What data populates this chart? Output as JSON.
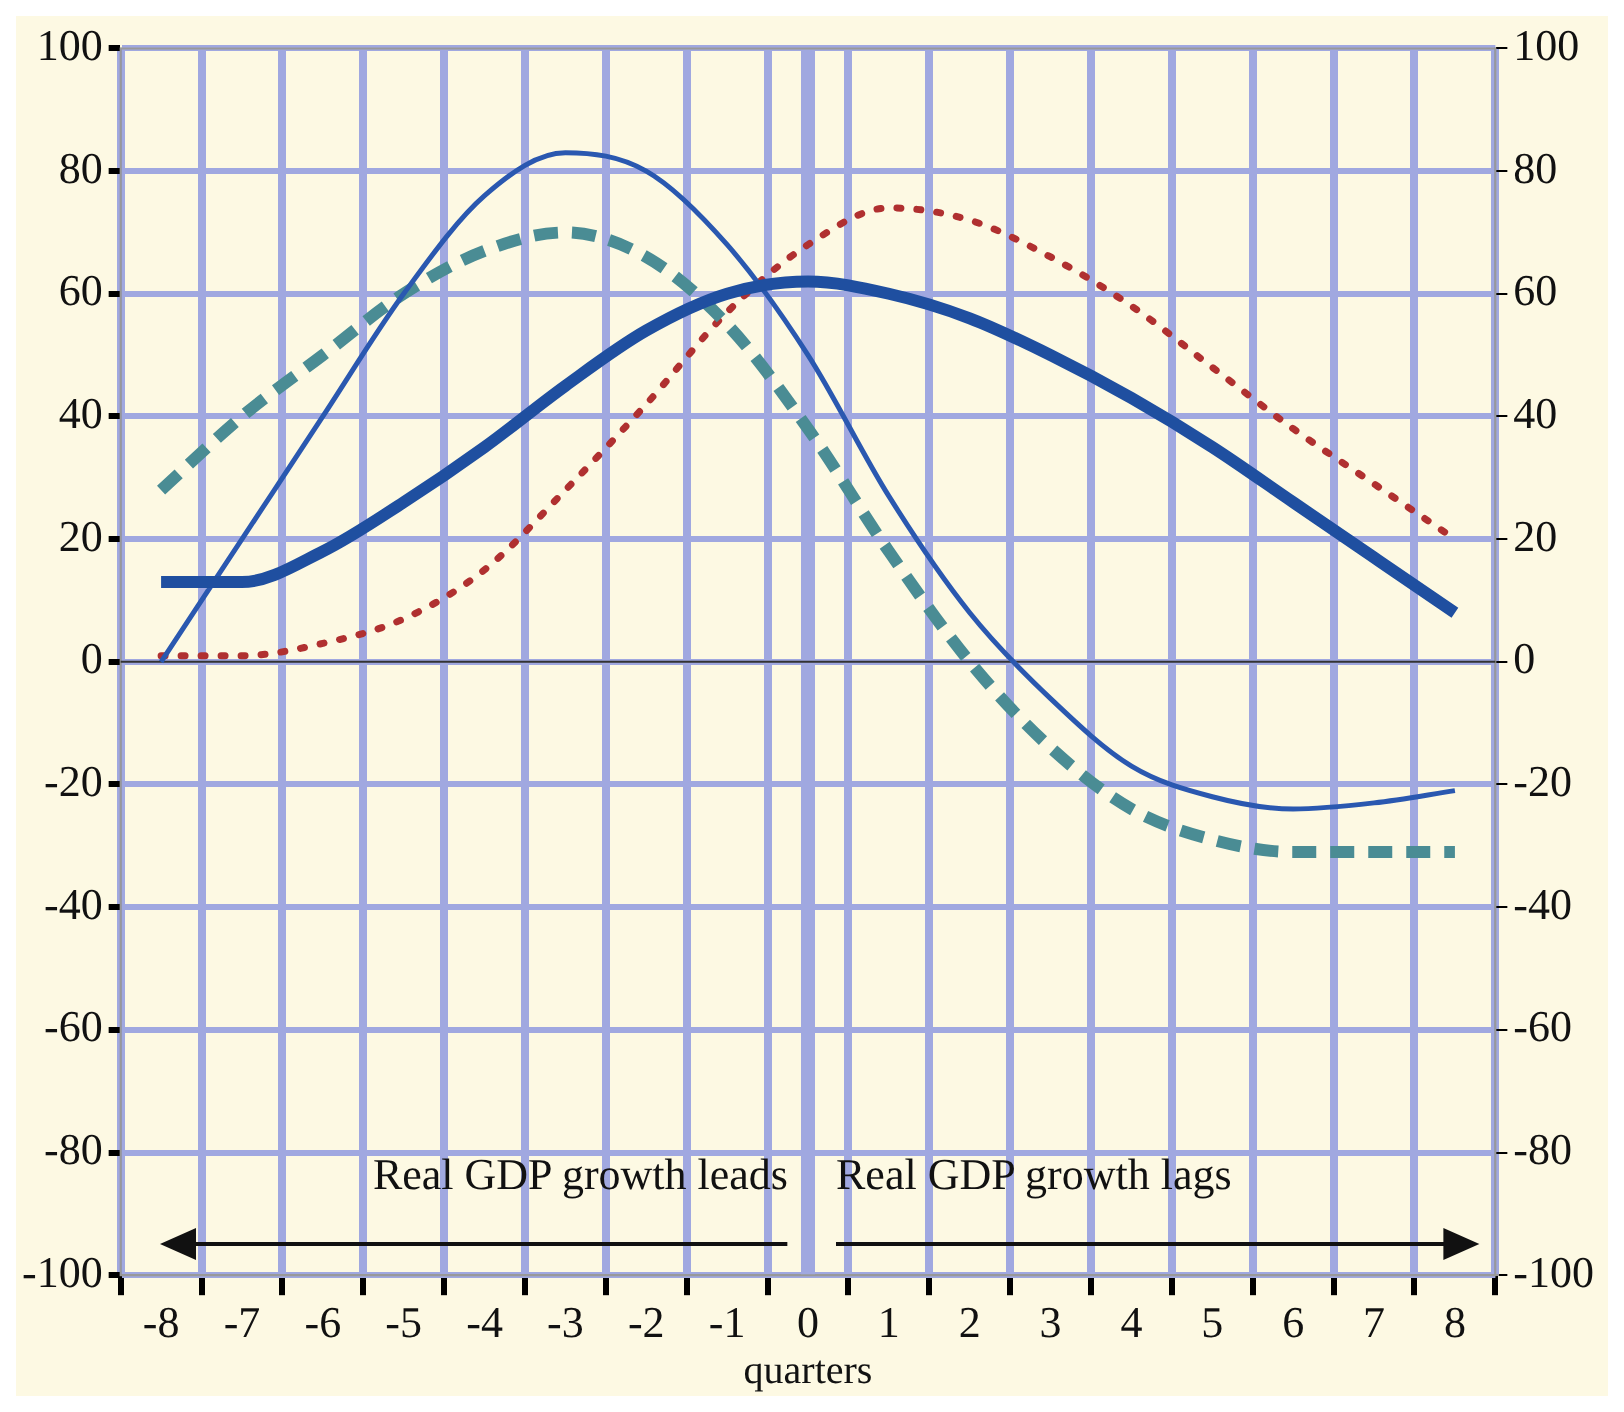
{
  "chart_data": {
    "type": "line",
    "xlabel": "quarters",
    "categories": [
      "-8",
      "-7",
      "-6",
      "-5",
      "-4",
      "-3",
      "-2",
      "-1",
      "0",
      "1",
      "2",
      "3",
      "4",
      "5",
      "6",
      "7",
      "8"
    ],
    "series": [
      {
        "color": "#1f4fa0",
        "line_style": "solid",
        "values": [
          13,
          13,
          18,
          26,
          35,
          45,
          54,
          60,
          62,
          60,
          56,
          50,
          43,
          35,
          26,
          17,
          8
        ]
      },
      {
        "color": "#2a58b0",
        "line_style": "solid",
        "values": [
          0,
          20,
          40,
          60,
          76,
          83,
          80,
          68,
          50,
          27,
          8,
          -6,
          -17,
          -22,
          -24,
          -23,
          -21
        ]
      },
      {
        "color": "#4a8c94",
        "line_style": "dashed",
        "values": [
          28,
          40,
          50,
          60,
          67,
          70,
          66,
          55,
          38,
          18,
          0,
          -14,
          -24,
          -29,
          -31,
          -31,
          -31
        ]
      },
      {
        "color": "#b03030",
        "line_style": "dotted",
        "values": [
          1,
          1,
          3,
          7,
          15,
          28,
          42,
          57,
          68,
          74,
          72,
          66,
          58,
          48,
          38,
          29,
          20
        ]
      }
    ],
    "ylim": [
      -100,
      100
    ],
    "yticks": [
      -100,
      -80,
      -60,
      -40,
      -20,
      0,
      20,
      40,
      60,
      80,
      100
    ],
    "y2lim": [
      -100,
      100
    ],
    "y2ticks": [
      -100,
      -80,
      -60,
      -40,
      -20,
      0,
      20,
      40,
      60,
      80,
      100
    ],
    "grid": true,
    "legend": false,
    "marker": "none",
    "ref_lines": [
      {
        "axis": "x",
        "value": "0",
        "color": "#a0a8e0"
      }
    ],
    "annotations": [
      "Real GDP growth leads",
      "Real GDP growth lags"
    ]
  }
}
